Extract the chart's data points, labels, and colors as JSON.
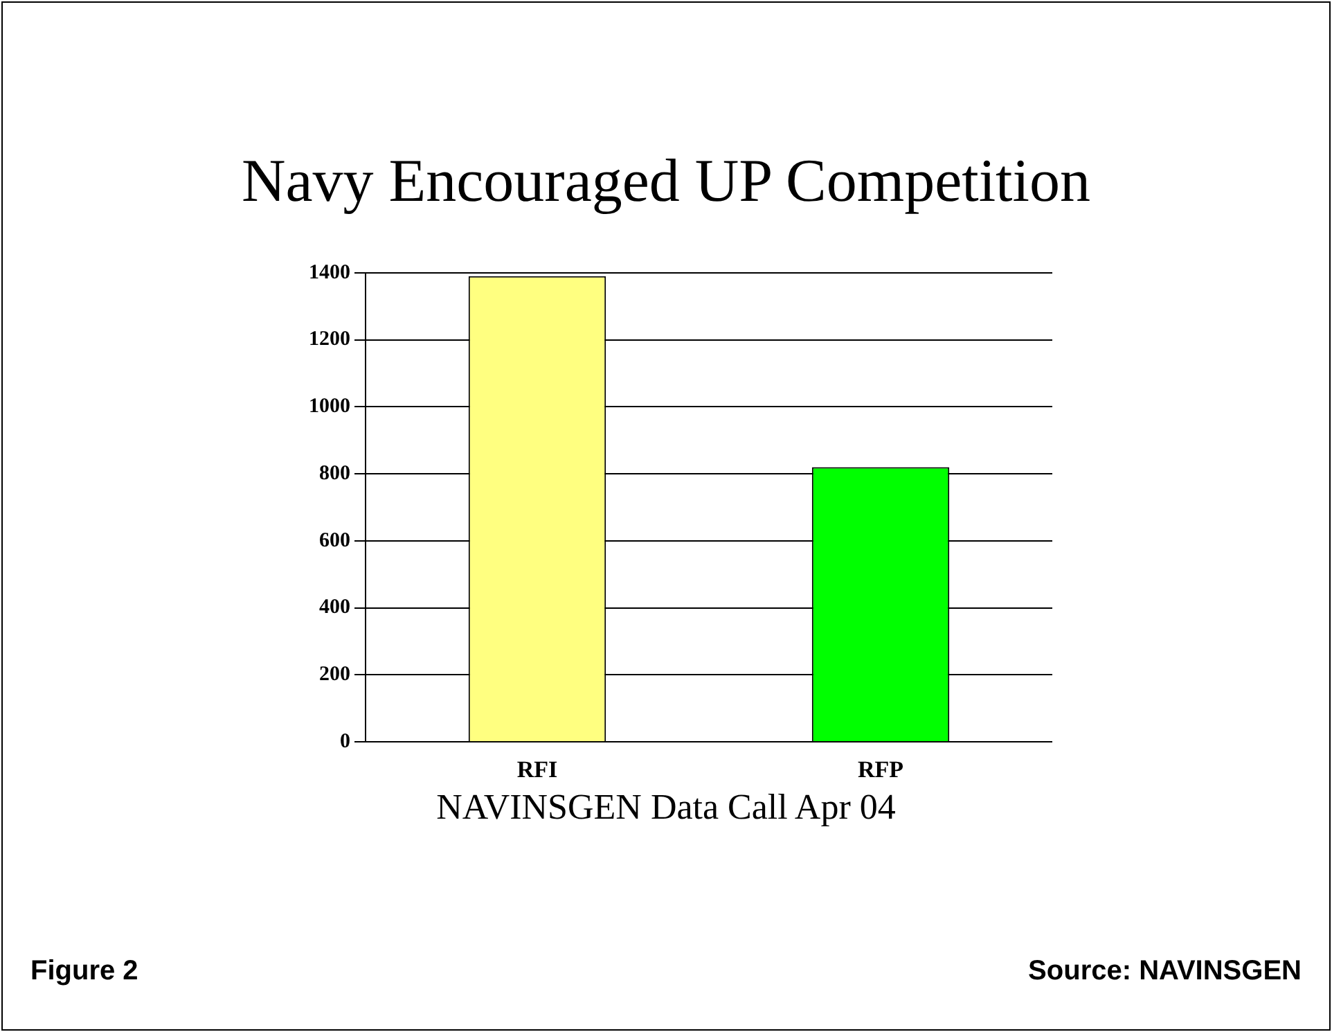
{
  "chart_data": {
    "type": "bar",
    "title": "Navy Encouraged UP Competition",
    "xlabel": "NAVINSGEN Data Call Apr 04",
    "categories": [
      "RFI",
      "RFP"
    ],
    "values": [
      1390,
      820
    ],
    "colors": [
      "#ffff80",
      "#00ff00"
    ],
    "ylim": [
      0,
      1400
    ],
    "yticks": [
      0,
      200,
      400,
      600,
      800,
      1000,
      1200,
      1400
    ],
    "grid": "y",
    "legend": false,
    "annotations": [
      "Figure 2",
      "Source:  NAVINSGEN"
    ]
  }
}
